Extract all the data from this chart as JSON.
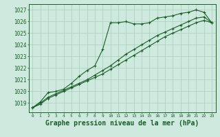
{
  "background_color": "#ceeade",
  "grid_color": "#a8ccbc",
  "line_color": "#1a5c28",
  "xlabel": "Graphe pression niveau de la mer (hPa)",
  "xlabel_fontsize": 7,
  "ylabel_ticks": [
    1019,
    1020,
    1021,
    1022,
    1023,
    1024,
    1025,
    1026,
    1027
  ],
  "xlim": [
    -0.5,
    23.5
  ],
  "ylim": [
    1018.2,
    1027.5
  ],
  "xticks": [
    0,
    1,
    2,
    3,
    4,
    5,
    6,
    7,
    8,
    9,
    10,
    11,
    12,
    13,
    14,
    15,
    16,
    17,
    18,
    19,
    20,
    21,
    22,
    23
  ],
  "series1": {
    "x": [
      0,
      1,
      2,
      3,
      4,
      5,
      6,
      7,
      8,
      9,
      10,
      11,
      12,
      13,
      14,
      15,
      16,
      17,
      18,
      19,
      20,
      21,
      22,
      23
    ],
    "y": [
      1018.6,
      1019.1,
      1019.9,
      1020.0,
      1020.2,
      1020.7,
      1021.3,
      1021.8,
      1022.2,
      1023.6,
      1025.9,
      1025.9,
      1026.0,
      1025.8,
      1025.8,
      1025.9,
      1026.3,
      1026.4,
      1026.5,
      1026.7,
      1026.8,
      1027.0,
      1026.8,
      1025.9
    ]
  },
  "series2": {
    "x": [
      0,
      1,
      2,
      3,
      4,
      5,
      6,
      7,
      8,
      9,
      10,
      11,
      12,
      13,
      14,
      15,
      16,
      17,
      18,
      19,
      20,
      21,
      22,
      23
    ],
    "y": [
      1018.6,
      1018.9,
      1019.4,
      1019.7,
      1020.0,
      1020.3,
      1020.6,
      1020.9,
      1021.2,
      1021.5,
      1021.9,
      1022.3,
      1022.7,
      1023.1,
      1023.5,
      1023.9,
      1024.3,
      1024.7,
      1025.0,
      1025.3,
      1025.6,
      1025.9,
      1026.1,
      1025.9
    ]
  },
  "series3": {
    "x": [
      0,
      1,
      2,
      3,
      4,
      5,
      6,
      7,
      8,
      9,
      10,
      11,
      12,
      13,
      14,
      15,
      16,
      17,
      18,
      19,
      20,
      21,
      22,
      23
    ],
    "y": [
      1018.6,
      1019.0,
      1019.5,
      1019.8,
      1020.1,
      1020.4,
      1020.7,
      1021.0,
      1021.4,
      1021.8,
      1022.2,
      1022.7,
      1023.2,
      1023.6,
      1024.0,
      1024.4,
      1024.8,
      1025.1,
      1025.4,
      1025.7,
      1026.0,
      1026.3,
      1026.4,
      1025.9
    ]
  }
}
